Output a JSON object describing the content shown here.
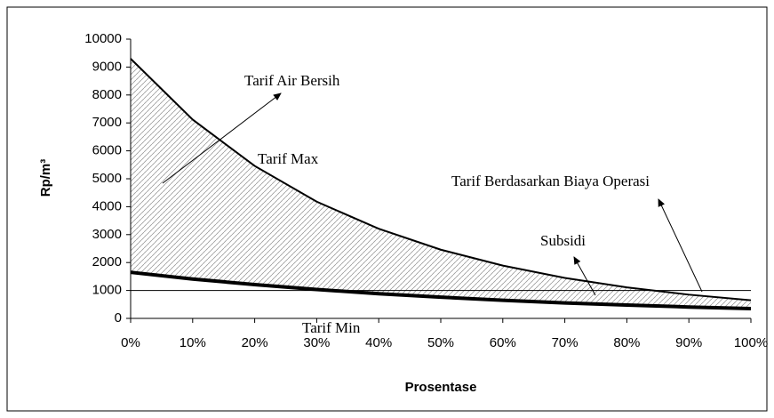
{
  "chart_data": {
    "type": "line",
    "xlabel": "Prosentase",
    "ylabel": "Rp/m³",
    "x": [
      0,
      10,
      20,
      30,
      40,
      50,
      60,
      70,
      80,
      90,
      100
    ],
    "series": [
      {
        "name": "Tarif Max",
        "color": "#000000",
        "values": [
          9300,
          7120,
          5460,
          4180,
          3210,
          2460,
          1890,
          1450,
          1110,
          850,
          650
        ]
      },
      {
        "name": "Tarif Min",
        "color": "#000000",
        "values": [
          1650,
          1410,
          1210,
          1035,
          885,
          760,
          650,
          555,
          477,
          408,
          350
        ]
      },
      {
        "name": "Tarif Berdasarkan Biaya Operasi",
        "color": "#000000",
        "values": [
          1000,
          1000,
          1000,
          1000,
          1000,
          1000,
          1000,
          1000,
          1000,
          1000,
          1000
        ]
      }
    ],
    "annotations": [
      "Tarif Air Bersih",
      "Subsidi"
    ],
    "xlim": [
      0,
      100
    ],
    "xticks": [
      {
        "value": 0,
        "label": "0%"
      },
      {
        "value": 10,
        "label": "10%"
      },
      {
        "value": 20,
        "label": "20%"
      },
      {
        "value": 30,
        "label": "30%"
      },
      {
        "value": 40,
        "label": "40%"
      },
      {
        "value": 50,
        "label": "50%"
      },
      {
        "value": 60,
        "label": "60%"
      },
      {
        "value": 70,
        "label": "70%"
      },
      {
        "value": 80,
        "label": "80%"
      },
      {
        "value": 90,
        "label": "90%"
      },
      {
        "value": 100,
        "label": "100%"
      }
    ],
    "ylim": [
      0,
      10000
    ],
    "yticks": [
      0,
      1000,
      2000,
      3000,
      4000,
      5000,
      6000,
      7000,
      8000,
      9000,
      10000
    ],
    "grid": false
  }
}
